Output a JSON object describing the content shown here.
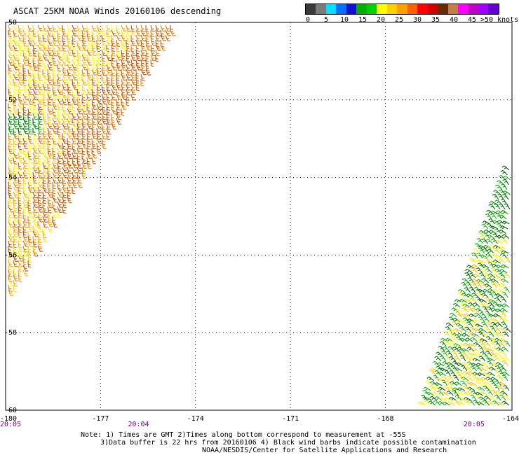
{
  "title": "ASCAT 25KM NOAA Winds 20160106 descending",
  "colorbar": {
    "colors": [
      "#3a3a3a",
      "#7a7a7a",
      "#00e0ff",
      "#0070ff",
      "#1010d0",
      "#00b000",
      "#00d000",
      "#ffff00",
      "#ffd000",
      "#ffa000",
      "#ff6000",
      "#ff0000",
      "#d00000",
      "#6a2a00",
      "#c08040",
      "#ff00ff",
      "#c000c0",
      "#a000ff",
      "#6000d0"
    ],
    "labels": [
      {
        "text": "0",
        "pos": 0
      },
      {
        "text": "5",
        "pos": 1
      },
      {
        "text": "10",
        "pos": 2
      },
      {
        "text": "15",
        "pos": 3
      },
      {
        "text": "20",
        "pos": 4
      },
      {
        "text": "25",
        "pos": 5
      },
      {
        "text": "30",
        "pos": 6
      },
      {
        "text": "35",
        "pos": 7
      },
      {
        "text": "40",
        "pos": 8
      },
      {
        "text": "45",
        "pos": 9
      },
      {
        "text": ">50 knots",
        "pos": 10.5
      }
    ]
  },
  "map": {
    "lon_range": [
      -180,
      -164
    ],
    "lat_range": [
      -50,
      -60
    ],
    "lat_ticks": [
      "-50",
      "-52",
      "-54",
      "-56",
      "-58",
      "-60"
    ],
    "lon_ticks": [
      "-180",
      "-177",
      "-174",
      "-171",
      "-168",
      "-164"
    ],
    "lon_tick_values": [
      -180,
      -177,
      -174,
      -171,
      -168,
      -164
    ],
    "lat_tick_values": [
      -50,
      -52,
      -54,
      -56,
      -58,
      -60
    ],
    "time_labels": [
      {
        "text": "20:05",
        "lon": -180
      },
      {
        "text": "20:04",
        "lon": -175.8
      },
      {
        "text": "20:05",
        "lon": -165.2
      }
    ]
  },
  "notes": {
    "line1": "Note: 1) Times are GMT 2)Times along bottom correspond to measurement at -55S",
    "line2": "3)Data buffer is 22 hrs from 20160106 4) Black wind barbs indicate possible contamination",
    "line3": "NOAA/NESDIS/Center for Satellite Applications and Research"
  }
}
